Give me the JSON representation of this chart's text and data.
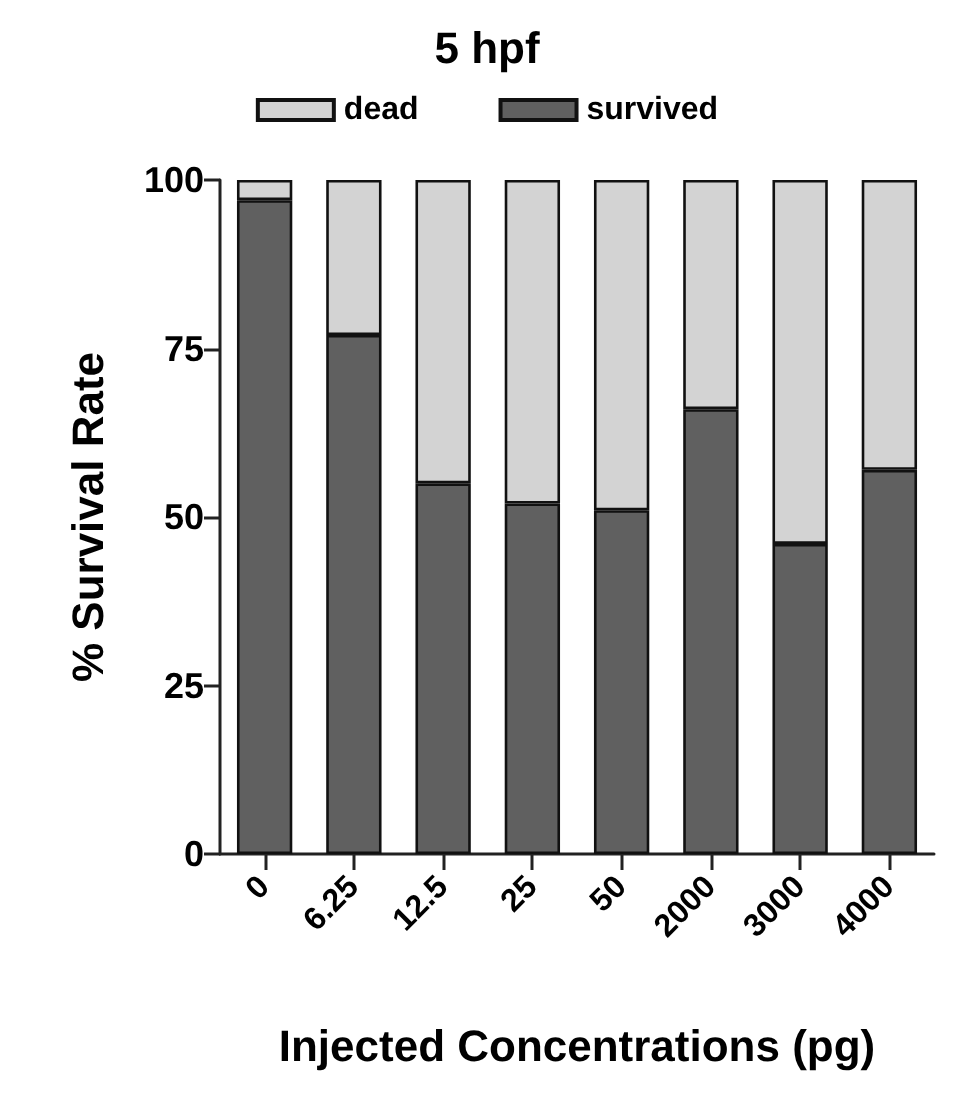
{
  "chart_data": {
    "type": "bar",
    "title": "5 hpf",
    "xlabel": "Injected Concentrations (pg)",
    "ylabel": "% Survival Rate",
    "categories": [
      "0",
      "6.25",
      "12.5",
      "25",
      "50",
      "2000",
      "3000",
      "4000"
    ],
    "stacked": true,
    "series": [
      {
        "name": "survived",
        "color": "#606060",
        "values": [
          97,
          77,
          55,
          52,
          51,
          66,
          46,
          57
        ]
      },
      {
        "name": "dead",
        "color": "#d3d3d3",
        "values": [
          3,
          23,
          45,
          48,
          49,
          34,
          54,
          43
        ]
      }
    ],
    "ylim": [
      0,
      100
    ],
    "yticks": [
      0,
      25,
      50,
      75,
      100
    ],
    "grid": false,
    "legend": "top"
  }
}
